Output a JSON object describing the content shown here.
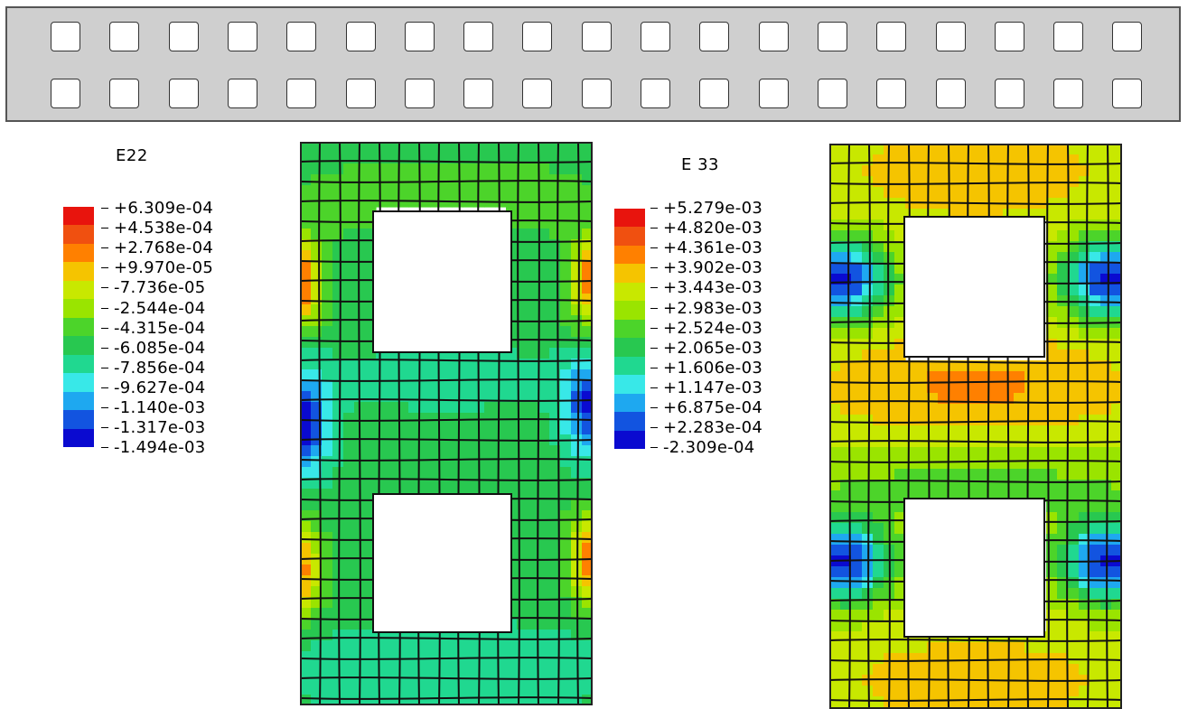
{
  "strip": {
    "rows": 2,
    "holes_per_row": 19
  },
  "legends": [
    {
      "title": "E22",
      "colors": [
        "#e8140d",
        "#f05010",
        "#ff8000",
        "#f5c400",
        "#c8e800",
        "#9ae400",
        "#4cd42a",
        "#28c850",
        "#20d890",
        "#38e8e8",
        "#1ea8f0",
        "#1254e0",
        "#0a0ad0"
      ],
      "labels": [
        "+6.309e-04",
        "+4.538e-04",
        "+2.768e-04",
        "+9.970e-05",
        "-7.736e-05",
        "-2.544e-04",
        "-4.315e-04",
        "-6.085e-04",
        "-7.856e-04",
        "-9.627e-04",
        "-1.140e-03",
        "-1.317e-03",
        "-1.494e-03"
      ]
    },
    {
      "title": "E 33",
      "colors": [
        "#e8140d",
        "#f05010",
        "#ff8000",
        "#f5c400",
        "#c8e800",
        "#9ae400",
        "#4cd42a",
        "#28c850",
        "#20d890",
        "#38e8e8",
        "#1ea8f0",
        "#1254e0",
        "#0a0ad0"
      ],
      "labels": [
        "+5.279e-03",
        "+4.820e-03",
        "+4.361e-03",
        "+3.902e-03",
        "+3.443e-03",
        "+2.983e-03",
        "+2.524e-03",
        "+2.065e-03",
        "+1.606e-03",
        "+1.147e-03",
        "+6.875e-04",
        "+2.283e-04",
        "-2.309e-04"
      ]
    }
  ]
}
